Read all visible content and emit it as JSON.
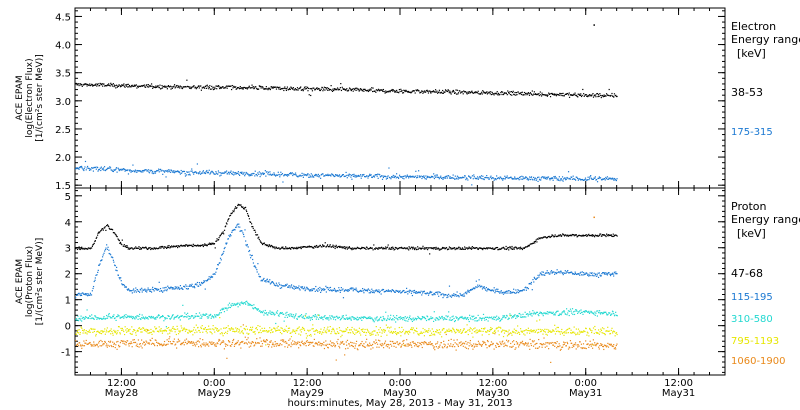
{
  "chart_data": [
    {
      "type": "scatter",
      "panel": "electron",
      "ylabel": [
        "ACE EPAM",
        "log(Electron Flux)",
        "[1/(cm²s ster MeV)]"
      ],
      "ylim": [
        1.45,
        4.65
      ],
      "yticks": [
        1.5,
        2.0,
        2.5,
        3.0,
        3.5,
        4.0,
        4.5
      ],
      "yticklabels": [
        "1.5",
        "2.0",
        "2.5",
        "3.0",
        "3.5",
        "4.0",
        "4.5"
      ],
      "legend": {
        "title_line1": "Electron",
        "title_line2": "Energy ranges",
        "unit": "[keV]",
        "placement": "right"
      },
      "series": [
        {
          "name": "38-53",
          "color": "#000000",
          "noise": 0.035,
          "x": [
            0,
            6,
            12,
            18,
            24,
            30,
            36,
            42,
            48,
            54,
            60,
            66,
            70
          ],
          "y": [
            3.3,
            3.28,
            3.26,
            3.25,
            3.24,
            3.22,
            3.2,
            3.18,
            3.17,
            3.15,
            3.13,
            3.11,
            3.1
          ]
        },
        {
          "name": "175-315",
          "color": "#1a78d2",
          "noise": 0.04,
          "x": [
            0,
            6,
            12,
            18,
            24,
            30,
            36,
            42,
            48,
            54,
            60,
            66,
            70
          ],
          "y": [
            1.82,
            1.78,
            1.75,
            1.73,
            1.71,
            1.69,
            1.67,
            1.66,
            1.65,
            1.64,
            1.63,
            1.62,
            1.62
          ]
        }
      ],
      "outliers": [
        {
          "x": 67.0,
          "y": 4.36,
          "color": "#000000"
        }
      ]
    },
    {
      "type": "scatter",
      "panel": "proton",
      "ylabel": [
        "ACE EPAM",
        "log(Proton Flux)",
        "[1/(cm²s ster MeV)]"
      ],
      "ylim": [
        -1.9,
        5.3
      ],
      "yticks": [
        -1,
        0,
        1,
        2,
        3,
        4,
        5
      ],
      "yticklabels": [
        "-1",
        "0",
        "1",
        "2",
        "3",
        "4",
        "5"
      ],
      "legend": {
        "title_line1": "Proton",
        "title_line2": "Energy ranges",
        "unit": "[keV]",
        "placement": "right"
      },
      "series": [
        {
          "name": "47-68",
          "color": "#000000",
          "noise": 0.05,
          "x": [
            0,
            2,
            3,
            4,
            5,
            6,
            7,
            8,
            10,
            14,
            16,
            18,
            19,
            20,
            21,
            22,
            23,
            24,
            25,
            26,
            28,
            32,
            36,
            44,
            48,
            52,
            56,
            58,
            60,
            62,
            66,
            70
          ],
          "y": [
            3.0,
            3.0,
            3.6,
            3.9,
            3.6,
            3.1,
            3.0,
            3.0,
            3.0,
            3.1,
            3.1,
            3.2,
            3.6,
            4.3,
            4.7,
            4.5,
            3.7,
            3.2,
            3.1,
            3.0,
            3.0,
            3.1,
            3.0,
            3.0,
            3.0,
            3.0,
            3.0,
            3.0,
            3.4,
            3.5,
            3.5,
            3.5
          ]
        },
        {
          "name": "115-195",
          "color": "#1a78d2",
          "noise": 0.09,
          "x": [
            0,
            2,
            3,
            4,
            5,
            6,
            7,
            8,
            10,
            14,
            16,
            18,
            19,
            20,
            21,
            22,
            23,
            24,
            26,
            28,
            32,
            36,
            44,
            48,
            50,
            52,
            54,
            56,
            58,
            60,
            62,
            66,
            70
          ],
          "y": [
            1.2,
            1.25,
            2.3,
            3.1,
            2.4,
            1.6,
            1.4,
            1.35,
            1.4,
            1.5,
            1.6,
            2.0,
            2.8,
            3.6,
            3.9,
            3.3,
            2.4,
            1.8,
            1.6,
            1.5,
            1.4,
            1.4,
            1.3,
            1.2,
            1.2,
            1.55,
            1.35,
            1.3,
            1.4,
            2.0,
            2.1,
            2.0,
            2.0
          ]
        },
        {
          "name": "310-580",
          "color": "#22d8d0",
          "noise": 0.1,
          "x": [
            0,
            6,
            12,
            18,
            20,
            22,
            24,
            30,
            36,
            42,
            48,
            54,
            60,
            66,
            70
          ],
          "y": [
            0.3,
            0.35,
            0.35,
            0.4,
            0.8,
            0.9,
            0.55,
            0.35,
            0.3,
            0.3,
            0.3,
            0.3,
            0.5,
            0.55,
            0.5
          ]
        },
        {
          "name": "795-1193",
          "color": "#e6e600",
          "noise": 0.16,
          "x": [
            0,
            12,
            24,
            36,
            48,
            60,
            70
          ],
          "y": [
            -0.2,
            -0.15,
            -0.15,
            -0.2,
            -0.2,
            -0.2,
            -0.2
          ]
        },
        {
          "name": "1060-1900",
          "color": "#e9891a",
          "noise": 0.16,
          "x": [
            0,
            12,
            24,
            36,
            48,
            60,
            70
          ],
          "y": [
            -0.7,
            -0.65,
            -0.65,
            -0.7,
            -0.7,
            -0.7,
            -0.75
          ]
        }
      ],
      "outliers": [
        {
          "x": 67.0,
          "y": 4.2,
          "color": "#e9891a"
        }
      ]
    }
  ],
  "time_axis": {
    "xlim": [
      0,
      84
    ],
    "ticks": [
      {
        "x": 6,
        "line1": "12:00",
        "line2": "May28"
      },
      {
        "x": 18,
        "line1": "0:00",
        "line2": "May29"
      },
      {
        "x": 30,
        "line1": "12:00",
        "line2": "May29"
      },
      {
        "x": 42,
        "line1": "0:00",
        "line2": "May30"
      },
      {
        "x": 54,
        "line1": "12:00",
        "line2": "May30"
      },
      {
        "x": 66,
        "line1": "0:00",
        "line2": "May31"
      },
      {
        "x": 78,
        "line1": "12:00",
        "line2": "May31"
      }
    ],
    "xlabel": "hours:minutes, May 28, 2013 - May 31, 2013"
  }
}
